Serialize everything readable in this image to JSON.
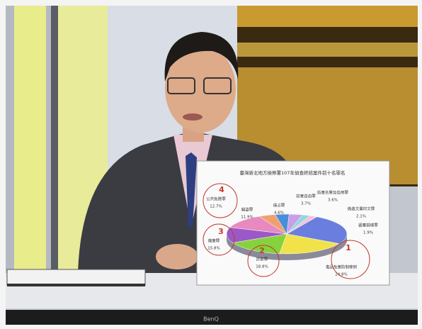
{
  "chart_data": {
    "type": "pie",
    "title": "臺灣新北地方檢察署107年偵查終結案件前十名罪名",
    "categories": [
      "毒品危害防制條例",
      "詐欺罪",
      "傷害罪",
      "公共危險罪",
      "竊盜罪",
      "侵占罪",
      "妨害自由罪",
      "妨害名譽及信用罪",
      "偽造文書印文罪",
      "毀棄損壞罪"
    ],
    "values": [
      24.8,
      18.8,
      15.8,
      12.7,
      11.9,
      4.6,
      3.7,
      3.6,
      2.1,
      1.9
    ],
    "value_labels": [
      "24.8%",
      "18.8%",
      "15.8%",
      "12.7%",
      "11.9%",
      "4.6%",
      "3.7%",
      "3.6%",
      "2.1%",
      "1.9%"
    ],
    "colors": [
      "#6a7ee0",
      "#f2e24a",
      "#86d23c",
      "#9b59c8",
      "#e889c0",
      "#f0a070",
      "#4a8ed8",
      "#c8a0e8",
      "#8fd8e0",
      "#f7c0d8"
    ],
    "ranks": [
      "1",
      "2",
      "3",
      "4"
    ]
  },
  "brand": "BenQ"
}
